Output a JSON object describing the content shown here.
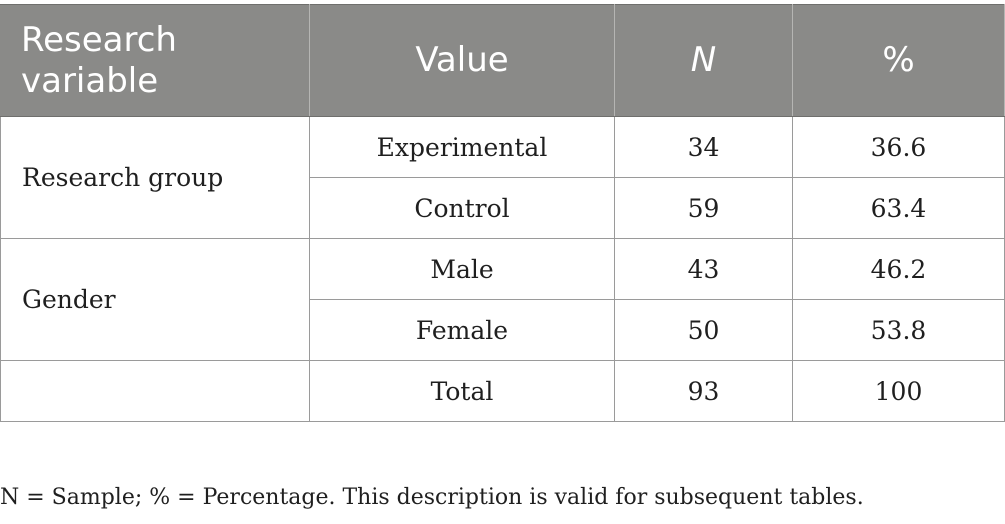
{
  "table": {
    "headers": [
      "Research\nvariable",
      "Value",
      "N",
      "%"
    ],
    "groups": [
      {
        "variable": "Research group",
        "rows": [
          {
            "value": "Experimental",
            "n": "34",
            "pct": "36.6"
          },
          {
            "value": "Control",
            "n": "59",
            "pct": "63.4"
          }
        ]
      },
      {
        "variable": "Gender",
        "rows": [
          {
            "value": "Male",
            "n": "43",
            "pct": "46.2"
          },
          {
            "value": "Female",
            "n": "50",
            "pct": "53.8"
          }
        ]
      }
    ],
    "total": {
      "variable": "",
      "value": "Total",
      "n": "93",
      "pct": "100"
    }
  },
  "note": "N = Sample; % = Percentage. This description is valid for subsequent tables.",
  "colors": {
    "header_bg": "#8a8a88",
    "header_text": "#ffffff",
    "border": "#9a9a9a"
  }
}
